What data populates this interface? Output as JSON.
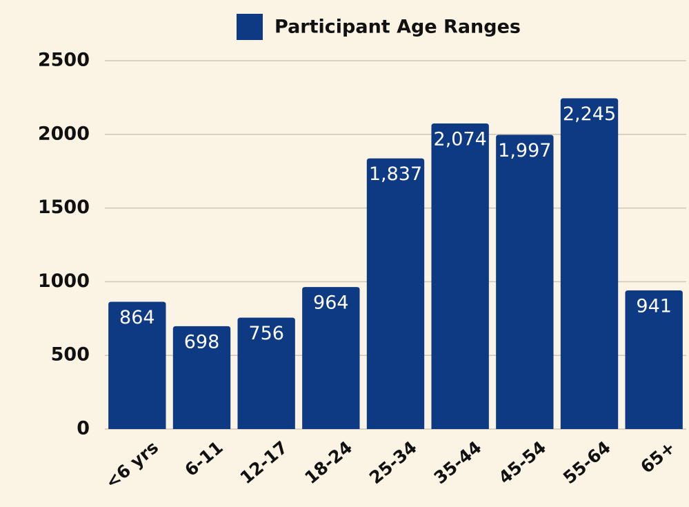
{
  "chart_data": {
    "type": "bar",
    "categories": [
      "<6 yrs",
      "6-11",
      "12-17",
      "18-24",
      "25-34",
      "35-44",
      "45-54",
      "55-64",
      "65+"
    ],
    "series": [
      {
        "name": "Participant Age Ranges",
        "color": "#0e3a84",
        "values": [
          864,
          698,
          756,
          964,
          1837,
          2074,
          1997,
          2245,
          941
        ],
        "value_labels": [
          "864",
          "698",
          "756",
          "964",
          "1,837",
          "2,074",
          "1,997",
          "2,245",
          "941"
        ]
      }
    ],
    "ylim": [
      0,
      2500
    ],
    "yticks": [
      0,
      500,
      1000,
      1500,
      2000,
      2500
    ],
    "grid": true,
    "legend": "top"
  }
}
